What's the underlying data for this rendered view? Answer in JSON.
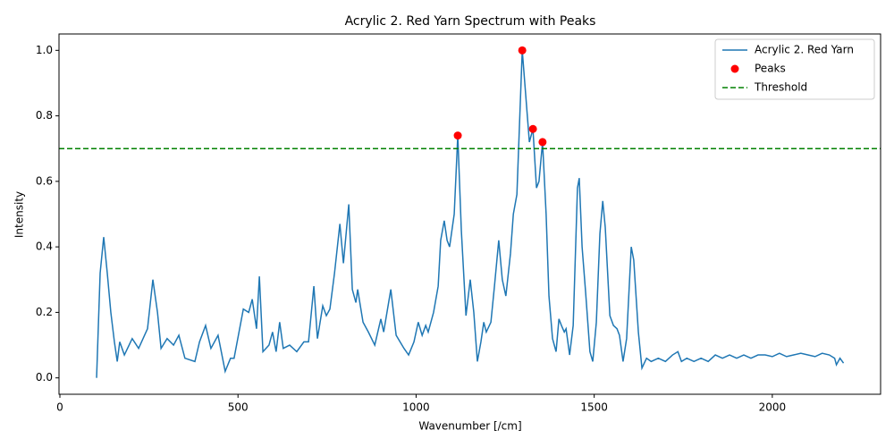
{
  "chart_data": {
    "type": "line",
    "title": "Acrylic 2. Red Yarn Spectrum with Peaks",
    "xlabel": "Wavenumber [/cm]",
    "ylabel": "Intensity",
    "x": [
      103,
      113,
      123,
      133,
      143,
      153,
      161,
      168,
      181,
      203,
      221,
      246,
      261,
      274,
      284,
      301,
      319,
      334,
      351,
      379,
      392,
      409,
      424,
      444,
      464,
      479,
      489,
      515,
      530,
      540,
      552,
      560,
      570,
      587,
      597,
      607,
      617,
      627,
      645,
      665,
      685,
      698,
      713,
      723,
      738,
      748,
      758,
      771,
      786,
      796,
      811,
      821,
      831,
      836,
      851,
      866,
      884,
      901,
      909,
      929,
      944,
      966,
      979,
      994,
      1006,
      1017,
      1027,
      1034,
      1049,
      1062,
      1069,
      1079,
      1087,
      1094,
      1107,
      1117,
      1127,
      1140,
      1152,
      1162,
      1172,
      1182,
      1190,
      1197,
      1210,
      1220,
      1232,
      1242,
      1252,
      1265,
      1273,
      1283,
      1298,
      1308,
      1318,
      1328,
      1338,
      1345,
      1355,
      1365,
      1373,
      1383,
      1393,
      1401,
      1408,
      1416,
      1421,
      1431,
      1441,
      1453,
      1458,
      1466,
      1476,
      1488,
      1496,
      1506,
      1516,
      1524,
      1531,
      1544,
      1554,
      1564,
      1571,
      1581,
      1591,
      1604,
      1611,
      1624,
      1634,
      1647,
      1660,
      1680,
      1700,
      1720,
      1735,
      1745,
      1760,
      1780,
      1800,
      1820,
      1840,
      1860,
      1880,
      1900,
      1920,
      1940,
      1960,
      1980,
      2000,
      2020,
      2040,
      2060,
      2080,
      2100,
      2120,
      2140,
      2160,
      2175,
      2180,
      2190,
      2200
    ],
    "series": [
      {
        "name": "Acrylic 2. Red Yarn",
        "color": "#1f77b4",
        "values": [
          0,
          0.32,
          0.43,
          0.32,
          0.2,
          0.11,
          0.05,
          0.11,
          0.07,
          0.12,
          0.09,
          0.15,
          0.3,
          0.2,
          0.09,
          0.12,
          0.1,
          0.13,
          0.06,
          0.05,
          0.11,
          0.16,
          0.09,
          0.13,
          0.02,
          0.06,
          0.06,
          0.21,
          0.2,
          0.24,
          0.15,
          0.31,
          0.08,
          0.1,
          0.14,
          0.08,
          0.17,
          0.09,
          0.1,
          0.08,
          0.11,
          0.11,
          0.28,
          0.12,
          0.22,
          0.19,
          0.21,
          0.32,
          0.47,
          0.35,
          0.53,
          0.27,
          0.23,
          0.27,
          0.17,
          0.14,
          0.1,
          0.18,
          0.14,
          0.27,
          0.13,
          0.09,
          0.07,
          0.11,
          0.17,
          0.13,
          0.16,
          0.14,
          0.2,
          0.28,
          0.42,
          0.48,
          0.42,
          0.4,
          0.5,
          0.74,
          0.45,
          0.19,
          0.3,
          0.2,
          0.05,
          0.11,
          0.17,
          0.14,
          0.17,
          0.28,
          0.42,
          0.3,
          0.25,
          0.38,
          0.5,
          0.56,
          1.0,
          0.86,
          0.72,
          0.76,
          0.58,
          0.6,
          0.72,
          0.5,
          0.25,
          0.12,
          0.08,
          0.18,
          0.16,
          0.14,
          0.15,
          0.07,
          0.16,
          0.58,
          0.61,
          0.4,
          0.26,
          0.08,
          0.05,
          0.17,
          0.44,
          0.54,
          0.46,
          0.19,
          0.16,
          0.15,
          0.13,
          0.05,
          0.12,
          0.4,
          0.36,
          0.14,
          0.03,
          0.06,
          0.05,
          0.06,
          0.05,
          0.07,
          0.08,
          0.05,
          0.06,
          0.05,
          0.06,
          0.05,
          0.07,
          0.06,
          0.07,
          0.06,
          0.07,
          0.06,
          0.07,
          0.07,
          0.065,
          0.075,
          0.065,
          0.07,
          0.075,
          0.07,
          0.065,
          0.075,
          0.07,
          0.06,
          0.04,
          0.06,
          0.045
        ]
      }
    ],
    "peaks": {
      "name": "Peaks",
      "color": "#ff0000",
      "x": [
        1117,
        1298,
        1328,
        1355
      ],
      "values": [
        0.74,
        1.0,
        0.76,
        0.72
      ]
    },
    "threshold": {
      "name": "Threshold",
      "color": "#008000",
      "value": 0.7
    },
    "xlim": [
      -2.5,
      2304
    ],
    "ylim": [
      -0.05,
      1.05
    ],
    "xticks": [
      0,
      500,
      1000,
      1500,
      2000
    ],
    "yticks": [
      {
        "value": 0,
        "label": "0.0"
      },
      0.2,
      0.4,
      0.6,
      0.8,
      {
        "value": 1,
        "label": "1.0"
      }
    ],
    "legend": "upper right"
  }
}
